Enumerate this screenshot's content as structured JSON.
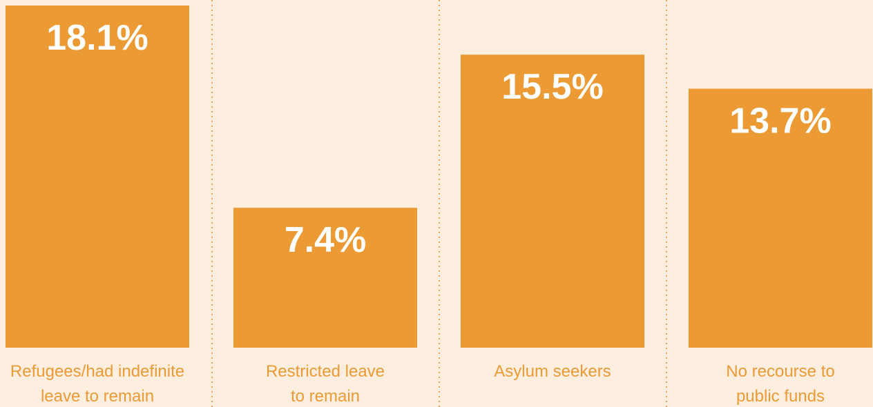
{
  "chart_data": {
    "type": "bar",
    "categories": [
      [
        "Refugees/had indefinite",
        "leave to remain"
      ],
      [
        "Restricted leave",
        "to remain"
      ],
      [
        "Asylum seekers"
      ],
      [
        "No recourse to",
        "public funds"
      ]
    ],
    "values": [
      18.1,
      7.4,
      15.5,
      13.7
    ],
    "value_labels": [
      "18.1%",
      "7.4%",
      "15.5%",
      "13.7%"
    ],
    "ylim": [
      0,
      18.1
    ],
    "grid": false,
    "colors": {
      "bar": "#ec9a33",
      "background": "#fdeee0",
      "value_text": "#ffffff",
      "label_text": "#ec9a33",
      "divider": "#e8a25a"
    }
  }
}
